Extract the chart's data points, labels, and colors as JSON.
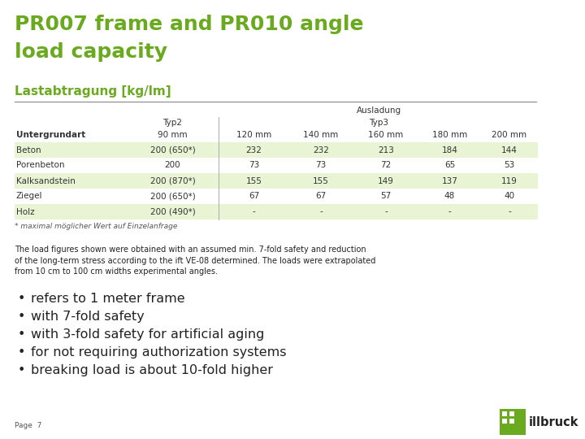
{
  "title_line1": "PR007 frame and PR010 angle",
  "title_line2": "load capacity",
  "title_color": "#6aaa1e",
  "section_title": "Lastabtragung [kg/lm]",
  "section_title_color": "#6aaa1e",
  "table_header_top": "Ausladung",
  "rows": [
    [
      "Beton",
      "200 (650*)",
      "232",
      "232",
      "213",
      "184",
      "144"
    ],
    [
      "Porenbeton",
      "200",
      "73",
      "73",
      "72",
      "65",
      "53"
    ],
    [
      "Kalksandstein",
      "200 (870*)",
      "155",
      "155",
      "149",
      "137",
      "119"
    ],
    [
      "Ziegel",
      "200 (650*)",
      "67",
      "67",
      "57",
      "48",
      "40"
    ],
    [
      "Holz",
      "200 (490*)",
      "-",
      "-",
      "-",
      "-",
      "-"
    ]
  ],
  "row_bg_colors": [
    "#e8f4d4",
    "#ffffff",
    "#e8f4d4",
    "#ffffff",
    "#e8f4d4"
  ],
  "footnote": "* maximal möglicher Wert auf Einzelanfrage",
  "paragraph": "The load figures shown were obtained with an assumed min. 7-fold safety and reduction\nof the long-term stress according to the ift VE-08 determined. The loads were extrapolated\nfrom 10 cm to 100 cm widths experimental angles.",
  "bullets": [
    "refers to 1 meter frame",
    "with 7-fold safety",
    "with 3-fold safety for artificial aging",
    "for not requiring authorization systems",
    "breaking load is about 10-fold higher"
  ],
  "page_label": "Page  7",
  "logo_green": "#6aaa1e",
  "bg_color": "#ffffff",
  "text_color": "#222222",
  "table_text_color": "#333333"
}
